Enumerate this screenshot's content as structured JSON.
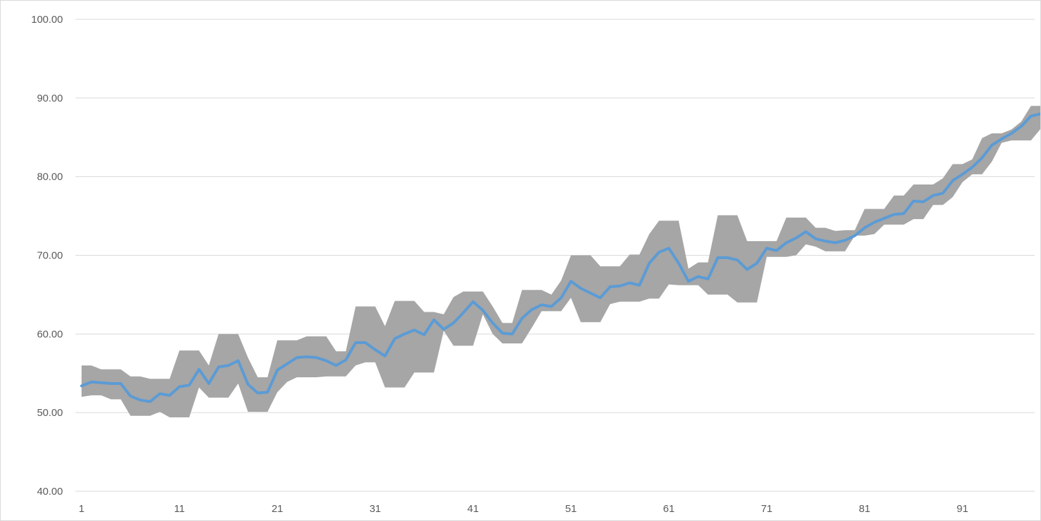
{
  "chart_data": {
    "type": "line",
    "title": "",
    "xlabel": "",
    "ylabel": "",
    "ylim": [
      40,
      100
    ],
    "yticks": [
      "40.00",
      "50.00",
      "60.00",
      "70.00",
      "80.00",
      "90.00",
      "100.00"
    ],
    "xticks": [
      "1",
      "11",
      "21",
      "31",
      "41",
      "51",
      "61",
      "71",
      "81",
      "91"
    ],
    "grid": "horizontal",
    "legend": "none",
    "x": [
      1,
      2,
      3,
      4,
      5,
      6,
      7,
      8,
      9,
      10,
      11,
      12,
      13,
      14,
      15,
      16,
      17,
      18,
      19,
      20,
      21,
      22,
      23,
      24,
      25,
      26,
      27,
      28,
      29,
      30,
      31,
      32,
      33,
      34,
      35,
      36,
      37,
      38,
      39,
      40,
      41,
      42,
      43,
      44,
      45,
      46,
      47,
      48,
      49,
      50,
      51,
      52,
      53,
      54,
      55,
      56,
      57,
      58,
      59,
      60,
      61,
      62,
      63,
      64,
      65,
      66,
      67,
      68,
      69,
      70,
      71,
      72,
      73,
      74,
      75,
      76,
      77,
      78,
      79,
      80,
      81,
      82,
      83,
      84,
      85,
      86,
      87,
      88,
      89,
      90,
      91,
      92,
      93,
      94,
      95,
      96,
      97,
      98,
      99
    ],
    "series": [
      {
        "kind": "band",
        "color": "#a6a6a6",
        "upper": [
          56.0,
          56.0,
          55.5,
          55.5,
          55.5,
          54.6,
          54.6,
          54.3,
          54.3,
          54.3,
          57.9,
          57.9,
          57.9,
          56.0,
          60.0,
          60.0,
          60.0,
          57.0,
          54.5,
          54.5,
          59.2,
          59.2,
          59.2,
          59.7,
          59.7,
          59.7,
          57.8,
          57.8,
          63.5,
          63.5,
          63.5,
          61.0,
          64.2,
          64.2,
          64.2,
          62.8,
          62.8,
          62.5,
          64.7,
          65.4,
          65.4,
          65.4,
          63.5,
          61.4,
          61.4,
          65.6,
          65.6,
          65.6,
          65.0,
          66.8,
          70.0,
          70.0,
          70.0,
          68.6,
          68.6,
          68.6,
          70.1,
          70.1,
          72.7,
          74.4,
          74.4,
          74.4,
          68.3,
          69.1,
          69.1,
          75.1,
          75.1,
          75.1,
          71.8,
          71.8,
          71.8,
          71.8,
          74.8,
          74.8,
          74.8,
          73.5,
          73.5,
          73.1,
          73.2,
          73.2,
          75.9,
          75.9,
          75.9,
          77.6,
          77.6,
          79.0,
          79.0,
          79.0,
          79.8,
          81.6,
          81.6,
          82.2,
          84.9,
          85.5,
          85.5,
          86.0,
          87.0,
          89.0,
          89.0
        ],
        "lower": [
          52.0,
          52.2,
          52.2,
          51.7,
          51.7,
          49.6,
          49.6,
          49.6,
          50.1,
          49.4,
          49.4,
          49.4,
          53.2,
          51.9,
          51.9,
          51.9,
          53.7,
          50.1,
          50.1,
          50.1,
          52.6,
          53.9,
          54.5,
          54.5,
          54.5,
          54.6,
          54.6,
          54.6,
          56.0,
          56.4,
          56.4,
          53.2,
          53.2,
          53.2,
          55.1,
          55.1,
          55.1,
          60.4,
          58.5,
          58.5,
          58.5,
          62.5,
          60.0,
          58.8,
          58.8,
          58.8,
          60.8,
          62.9,
          62.9,
          62.9,
          64.6,
          61.5,
          61.5,
          61.5,
          63.8,
          64.1,
          64.1,
          64.1,
          64.5,
          64.5,
          66.3,
          66.2,
          66.2,
          66.2,
          65.0,
          65.0,
          65.0,
          64.0,
          64.0,
          64.0,
          69.8,
          69.8,
          69.8,
          70.0,
          71.4,
          71.1,
          70.5,
          70.5,
          70.5,
          72.5,
          72.5,
          72.7,
          73.9,
          73.9,
          73.9,
          74.6,
          74.6,
          76.4,
          76.4,
          77.4,
          79.3,
          80.3,
          80.3,
          81.9,
          84.3,
          84.6,
          84.6,
          84.6,
          86.1
        ]
      },
      {
        "kind": "line",
        "color": "#5b9bd5",
        "values": [
          53.4,
          53.9,
          53.8,
          53.7,
          53.7,
          52.1,
          51.6,
          51.4,
          52.4,
          52.2,
          53.3,
          53.5,
          55.5,
          53.7,
          55.8,
          56.0,
          56.6,
          53.6,
          52.5,
          52.6,
          55.4,
          56.2,
          57.0,
          57.1,
          57.0,
          56.6,
          56.0,
          56.7,
          58.9,
          58.9,
          58.0,
          57.2,
          59.4,
          60.0,
          60.5,
          59.9,
          61.8,
          60.6,
          61.4,
          62.7,
          64.1,
          63.0,
          61.4,
          60.1,
          60.0,
          62.0,
          63.1,
          63.7,
          63.5,
          64.6,
          66.7,
          65.8,
          65.2,
          64.6,
          66.0,
          66.1,
          66.5,
          66.2,
          69.0,
          70.4,
          70.9,
          69.0,
          66.7,
          67.3,
          67.0,
          69.7,
          69.7,
          69.4,
          68.2,
          69.0,
          70.9,
          70.6,
          71.6,
          72.2,
          73.0,
          72.1,
          71.8,
          71.6,
          71.9,
          72.5,
          73.5,
          74.2,
          74.7,
          75.2,
          75.3,
          76.9,
          76.8,
          77.6,
          77.9,
          79.5,
          80.3,
          81.2,
          82.4,
          84.0,
          84.8,
          85.5,
          86.4,
          87.7,
          88.0
        ]
      }
    ]
  }
}
